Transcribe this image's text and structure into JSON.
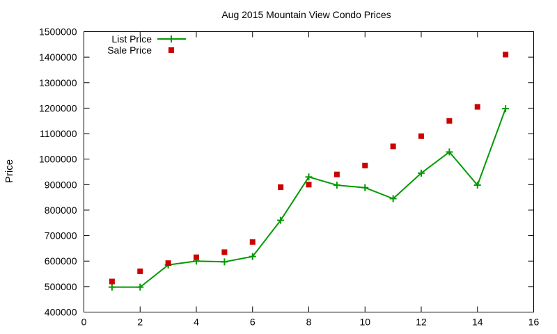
{
  "chart_data": {
    "type": "line",
    "title": "Aug 2015 Mountain View Condo Prices",
    "xlabel": "",
    "ylabel": "Price",
    "xlim": [
      0,
      16
    ],
    "ylim": [
      400000,
      1500000
    ],
    "x_ticks": [
      0,
      2,
      4,
      6,
      8,
      10,
      12,
      14,
      16
    ],
    "y_ticks": [
      400000,
      500000,
      600000,
      700000,
      800000,
      900000,
      1000000,
      1100000,
      1200000,
      1300000,
      1400000,
      1500000
    ],
    "grid": false,
    "legend_position": "top-left",
    "series": [
      {
        "name": "List Price",
        "style": "line-with-plus-markers",
        "color": "#009900",
        "x": [
          1,
          2,
          3,
          4,
          5,
          6,
          7,
          8,
          9,
          10,
          11,
          12,
          13,
          14,
          15
        ],
        "y": [
          498000,
          498000,
          585000,
          600000,
          597000,
          618000,
          760000,
          930000,
          898000,
          888000,
          845000,
          945000,
          1028000,
          898000,
          1198000
        ]
      },
      {
        "name": "Sale Price",
        "style": "square-markers",
        "color": "#cc0000",
        "x": [
          1,
          2,
          3,
          4,
          5,
          6,
          7,
          8,
          9,
          10,
          11,
          12,
          13,
          14,
          15
        ],
        "y": [
          520000,
          560000,
          592000,
          615000,
          635000,
          675000,
          890000,
          900000,
          940000,
          975000,
          1050000,
          1090000,
          1150000,
          1205000,
          1410000
        ]
      }
    ]
  }
}
